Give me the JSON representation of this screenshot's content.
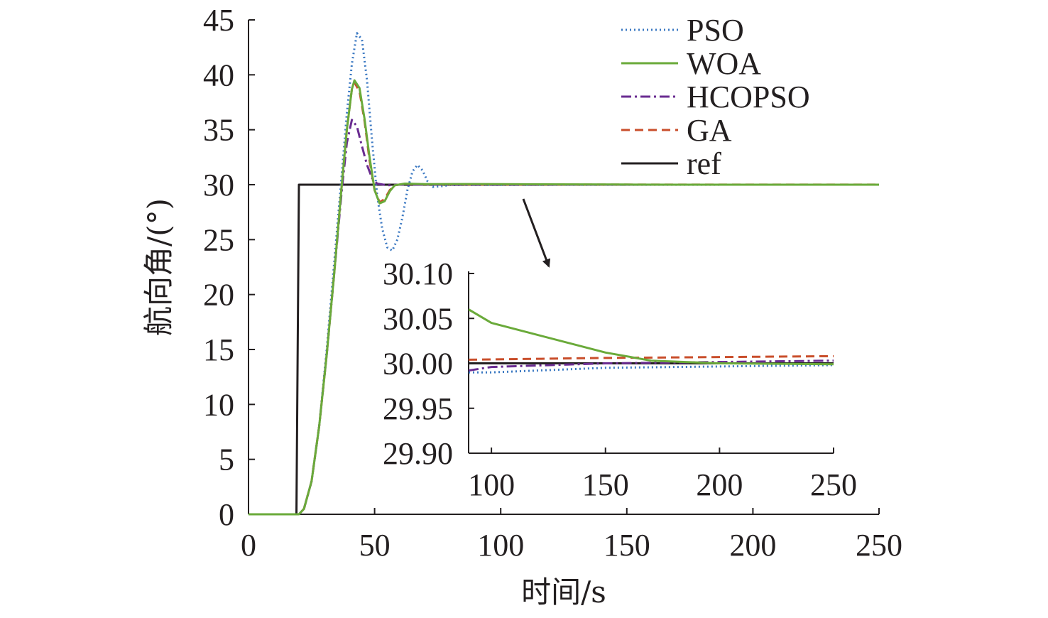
{
  "chart_data": [
    {
      "type": "line",
      "xlabel": "时间/s",
      "ylabel": "航向角/(°)",
      "xlim": [
        0,
        250
      ],
      "ylim": [
        0,
        45
      ],
      "xticks": [
        0,
        50,
        100,
        150,
        200,
        250
      ],
      "yticks": [
        0,
        5,
        10,
        15,
        20,
        25,
        30,
        35,
        40,
        45
      ],
      "grid": false,
      "legend_position": "top-right",
      "series": [
        {
          "name": "PSO",
          "style": "dotted",
          "color": "#3a78c2",
          "points": [
            [
              0,
              0
            ],
            [
              20,
              0
            ],
            [
              22,
              0.5
            ],
            [
              25,
              3
            ],
            [
              28,
              8
            ],
            [
              31,
              15
            ],
            [
              34,
              23
            ],
            [
              37,
              31
            ],
            [
              39,
              36.5
            ],
            [
              41,
              41
            ],
            [
              43,
              43.8
            ],
            [
              45,
              43.2
            ],
            [
              47,
              39.5
            ],
            [
              49,
              34
            ],
            [
              51,
              29
            ],
            [
              53,
              26
            ],
            [
              55,
              24.3
            ],
            [
              57,
              24
            ],
            [
              59,
              25
            ],
            [
              61,
              27
            ],
            [
              63,
              29.5
            ],
            [
              65,
              31.2
            ],
            [
              67,
              31.8
            ],
            [
              69,
              31.3
            ],
            [
              71,
              30.3
            ],
            [
              73,
              29.8
            ],
            [
              76,
              29.85
            ],
            [
              80,
              29.97
            ],
            [
              90,
              29.99
            ],
            [
              100,
              29.99
            ],
            [
              150,
              29.995
            ],
            [
              250,
              29.998
            ]
          ]
        },
        {
          "name": "WOA",
          "style": "solid",
          "color": "#6aaa3a",
          "points": [
            [
              0,
              0
            ],
            [
              20,
              0
            ],
            [
              22,
              0.5
            ],
            [
              25,
              3
            ],
            [
              28,
              8
            ],
            [
              31,
              14.5
            ],
            [
              34,
              22
            ],
            [
              37,
              30
            ],
            [
              39,
              35
            ],
            [
              41,
              38.7
            ],
            [
              42,
              39.5
            ],
            [
              44,
              38.8
            ],
            [
              46,
              36
            ],
            [
              48,
              32.5
            ],
            [
              50,
              29.5
            ],
            [
              52,
              28.3
            ],
            [
              54,
              28.5
            ],
            [
              56,
              29.4
            ],
            [
              58,
              29.95
            ],
            [
              62,
              30.1
            ],
            [
              70,
              30.05
            ],
            [
              90,
              30.06
            ],
            [
              100,
              30.045
            ],
            [
              150,
              30.012
            ],
            [
              170,
              30.003
            ],
            [
              200,
              30.0
            ],
            [
              250,
              29.999
            ]
          ]
        },
        {
          "name": "HCOPSO",
          "style": "dash-dot",
          "color": "#6a2c91",
          "points": [
            [
              0,
              0
            ],
            [
              20,
              0
            ],
            [
              22,
              0.5
            ],
            [
              25,
              3
            ],
            [
              28,
              8
            ],
            [
              31,
              14.5
            ],
            [
              34,
              22
            ],
            [
              37,
              29.5
            ],
            [
              39,
              33.8
            ],
            [
              41,
              35.9
            ],
            [
              43,
              35.3
            ],
            [
              45,
              33.5
            ],
            [
              47,
              31.8
            ],
            [
              49,
              30.6
            ],
            [
              51,
              30.1
            ],
            [
              55,
              29.95
            ],
            [
              60,
              30.0
            ],
            [
              90,
              29.992
            ],
            [
              100,
              29.996
            ],
            [
              150,
              30.0
            ],
            [
              250,
              30.003
            ]
          ]
        },
        {
          "name": "GA",
          "style": "dashed",
          "color": "#c94e2b",
          "points": [
            [
              0,
              0
            ],
            [
              20,
              0
            ],
            [
              22,
              0.5
            ],
            [
              25,
              3
            ],
            [
              28,
              8
            ],
            [
              31,
              14.5
            ],
            [
              34,
              22
            ],
            [
              37,
              30
            ],
            [
              39,
              35
            ],
            [
              41,
              38.7
            ],
            [
              42,
              39.3
            ],
            [
              44,
              38.5
            ],
            [
              46,
              35.8
            ],
            [
              48,
              32.2
            ],
            [
              50,
              29.5
            ],
            [
              52,
              28.4
            ],
            [
              54,
              28.7
            ],
            [
              56,
              29.5
            ],
            [
              58,
              29.95
            ],
            [
              62,
              30.08
            ],
            [
              70,
              30.03
            ],
            [
              90,
              30.004
            ],
            [
              150,
              30.006
            ],
            [
              250,
              30.008
            ]
          ]
        },
        {
          "name": "ref",
          "style": "solid",
          "color": "#231f20",
          "points": [
            [
              0,
              0
            ],
            [
              19,
              0
            ],
            [
              20,
              30
            ],
            [
              250,
              30
            ]
          ]
        }
      ]
    },
    {
      "type": "line",
      "role": "inset",
      "xlim": [
        90,
        250
      ],
      "ylim": [
        29.9,
        30.1
      ],
      "xticks": [
        100,
        150,
        200,
        250
      ],
      "yticks": [
        "29.90",
        "29.95",
        "30.00",
        "30.05",
        "30.10"
      ],
      "grid": false
    }
  ],
  "annotations": {
    "arrow": "pointer from main curve at y=30 to inset"
  }
}
